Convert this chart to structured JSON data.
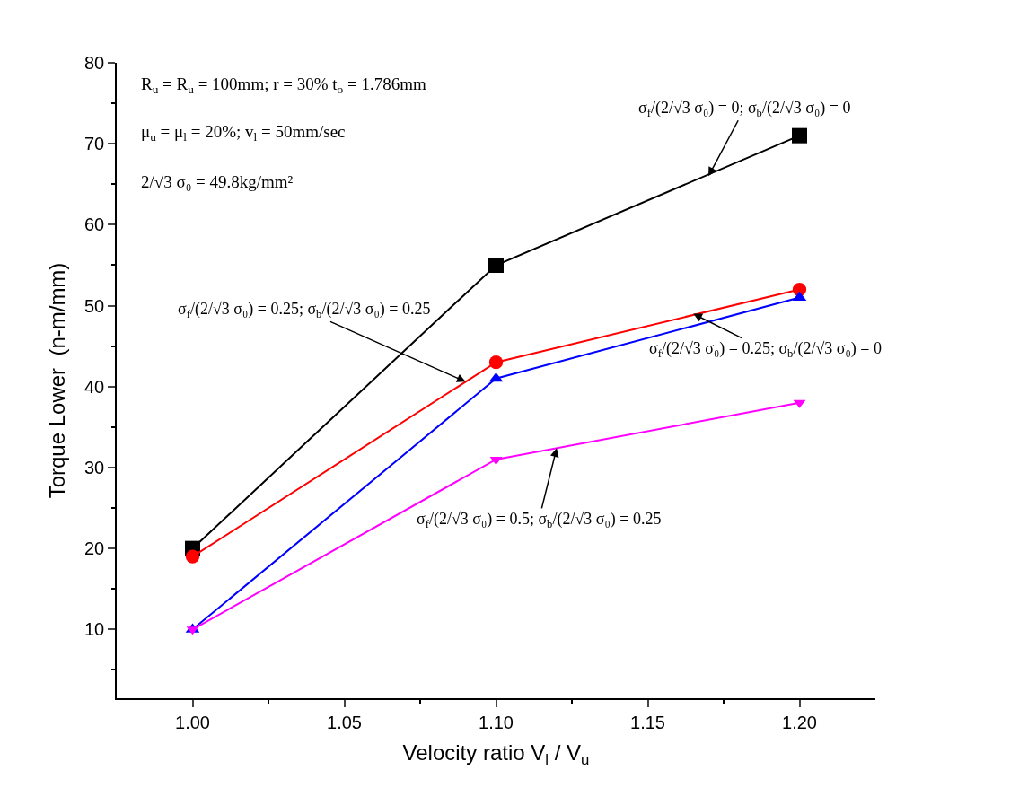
{
  "chart_data": {
    "type": "line",
    "xlabel": "Velocity ratio V$_{l}$ / V$_{u}$",
    "ylabel": "Torque Lower  (n-m/mm)",
    "x": [
      1.0,
      1.1,
      1.2
    ],
    "series": [
      {
        "color": "#000000",
        "marker": "square",
        "values": [
          20,
          55,
          71
        ]
      },
      {
        "color": "#ff0000",
        "marker": "circle",
        "values": [
          19,
          43,
          52
        ]
      },
      {
        "color": "#0000ff",
        "marker": "triangle",
        "values": [
          10,
          41,
          51
        ]
      },
      {
        "color": "#ff00ff",
        "marker": "triangle-down",
        "values": [
          10,
          31,
          38
        ]
      }
    ],
    "xlim": [
      0.975,
      1.225
    ],
    "xticks": [
      {
        "value": 1.0,
        "label": "1.00"
      },
      {
        "value": 1.025,
        "label": null
      },
      {
        "value": 1.05,
        "label": "1.05"
      },
      {
        "value": 1.075,
        "label": null
      },
      {
        "value": 1.1,
        "label": "1.10"
      },
      {
        "value": 1.125,
        "label": null
      },
      {
        "value": 1.15,
        "label": "1.15"
      },
      {
        "value": 1.175,
        "label": null
      },
      {
        "value": 1.2,
        "label": "1.20"
      }
    ],
    "ylim": [
      1.5,
      80
    ],
    "yticks": [
      {
        "value": 5,
        "label": null
      },
      10,
      {
        "value": 15,
        "label": null
      },
      20,
      {
        "value": 25,
        "label": null
      },
      30,
      {
        "value": 35,
        "label": null
      },
      40,
      {
        "value": 45,
        "label": null
      },
      50,
      {
        "value": 55,
        "label": null
      },
      60,
      {
        "value": 65,
        "label": null
      },
      70,
      {
        "value": 75,
        "label": null
      },
      80
    ],
    "line_style": "solid",
    "annotations": [
      "R$_{u}$ = R$_{u}$ = 100mm; r = 30% t$_{o}$ = 1.786mm",
      "μ$_{u}$ = μ$_{l}$ = 20%; v$_{l}$ = 50mm/sec",
      "2/√3 σ₀ = 49.8kg/mm²",
      {
        "text": "σ$_{f}$/(2/√3 σ₀) = 0; σ$_{b}$/(2/√3 σ₀) = 0",
        "x": 1.17,
        "y": 66
      },
      {
        "text": "σ$_{f}$/(2/√3 σ₀) = 0.25; σ$_{b}$/(2/√3 σ₀) = 0.25",
        "x": 1.09,
        "y": 40.6
      },
      {
        "text": "σ$_{f}$/(2/√3 σ₀) = 0.25; σ$_{b}$/(2/√3 σ₀) = 0",
        "x": 1.165,
        "y": 49
      },
      {
        "text": "σ$_{f}$/(2/√3 σ₀) = 0.5; σ$_{b}$/(2/√3 σ₀) = 0.25",
        "x": 1.12,
        "y": 32.4
      }
    ]
  }
}
